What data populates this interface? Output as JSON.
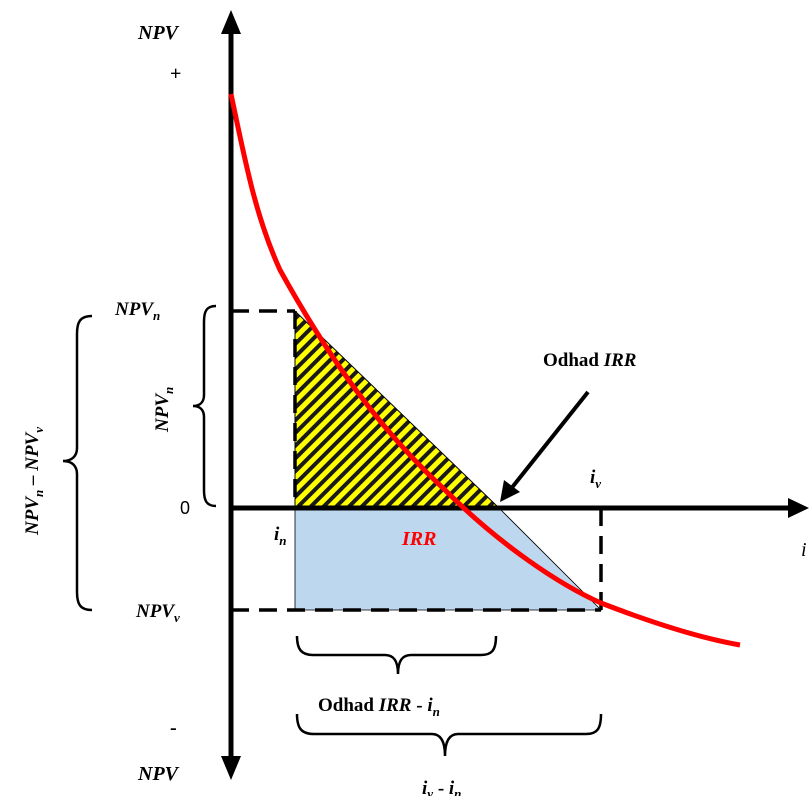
{
  "axes": {
    "y_top": "NPV",
    "y_plus": "+",
    "y_minus": "-",
    "y_bottom": "NPV",
    "zero": "0",
    "x_axis": "i"
  },
  "points": {
    "npv_n": {
      "base": "NPV",
      "sub": "n"
    },
    "npv_v": {
      "base": "NPV",
      "sub": "v"
    },
    "i_n": {
      "base": "i",
      "sub": "n"
    },
    "i_v": {
      "base": "i",
      "sub": "v"
    }
  },
  "curve_label": "IRR",
  "arrow_label": {
    "prefix": "Odhad ",
    "italic": "IRR"
  },
  "brace_vertical_inner": {
    "base": "NPV",
    "sub": "n"
  },
  "brace_vertical_outer": {
    "a": "NPV",
    "a_sub": "n",
    "sep": " – ",
    "b": "NPV",
    "b_sub": "v"
  },
  "brace_horizontal_inner": {
    "prefix": "Odhad ",
    "italic": "IRR",
    "sep": " - ",
    "i": "i",
    "sub": "n"
  },
  "brace_horizontal_outer": {
    "a": "i",
    "a_sub": "v",
    "sep": " - ",
    "b": "i",
    "b_sub": "n"
  },
  "colors": {
    "curve": "#ff0000",
    "hatch_fill": "#ffff00",
    "lower_fill": "#bdd7ee",
    "line": "#000000"
  }
}
